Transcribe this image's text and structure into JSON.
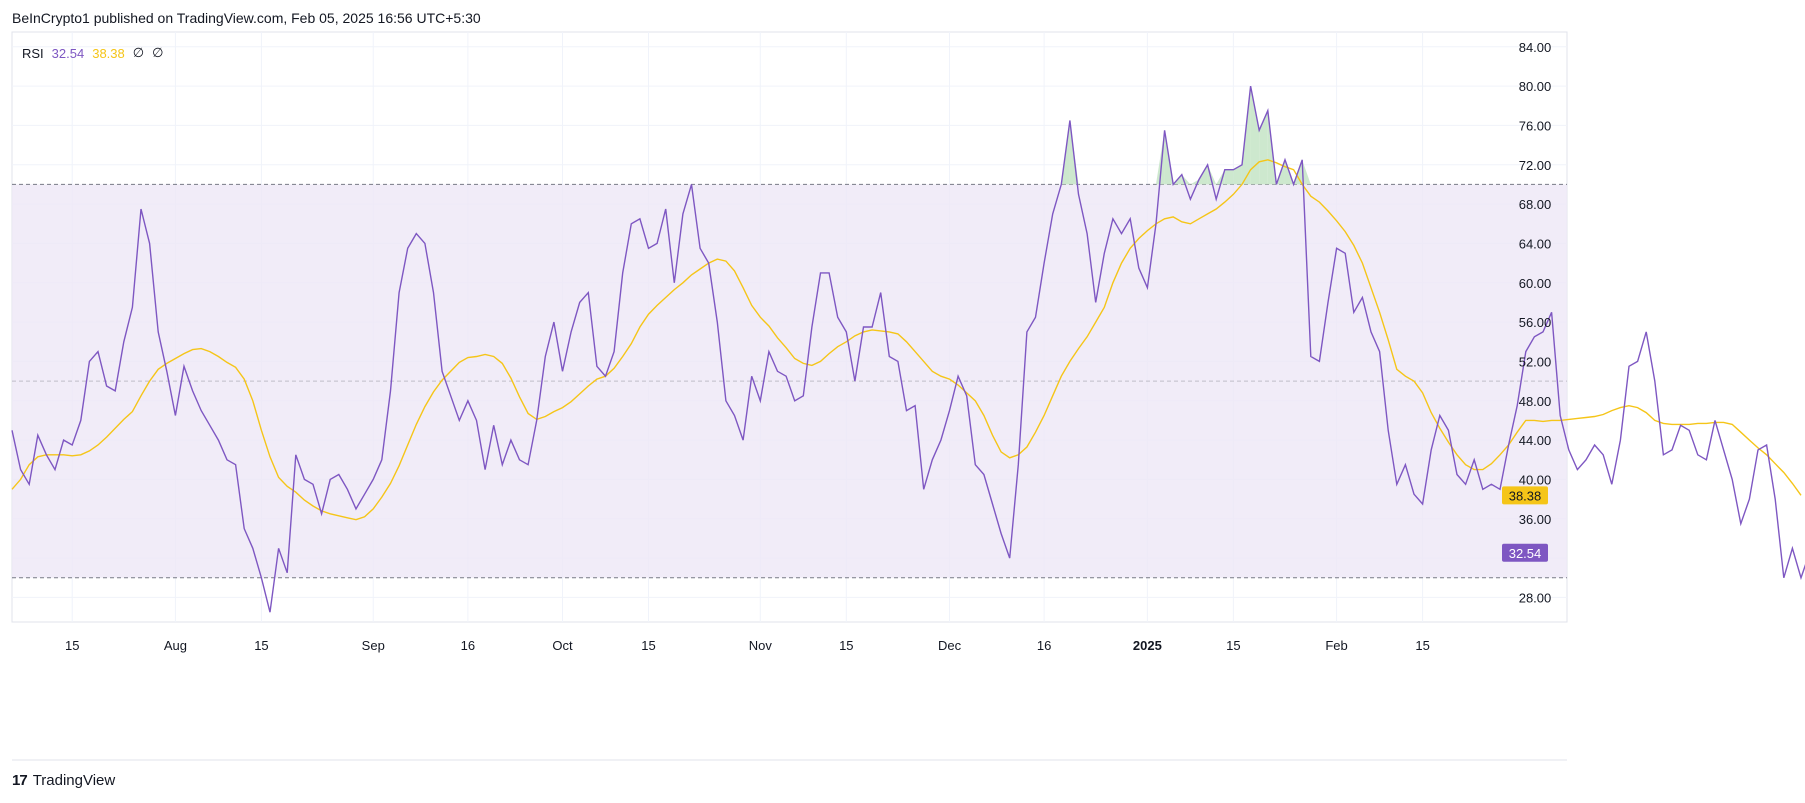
{
  "publisher": "BeInCrypto1 published on TradingView.com, Feb 05, 2025 16:56 UTC+5:30",
  "footer": {
    "brand": "TradingView",
    "logo_text": "17"
  },
  "legend": {
    "name": "RSI",
    "rsi_value": "32.54",
    "ma_value": "38.38",
    "na1": "∅",
    "na2": "∅"
  },
  "colors": {
    "rsi": "#7e57c2",
    "ma": "#f5c518",
    "band": "#ede7f6",
    "overbought_fill": "#c8e6c9",
    "grid": "#f0f3fa",
    "axis_text": "#131722"
  },
  "chart_data": {
    "type": "line",
    "title": "RSI",
    "ylim": [
      25.5,
      85.5
    ],
    "y_ticks": [
      "84.00",
      "80.00",
      "76.00",
      "72.00",
      "68.00",
      "64.00",
      "60.00",
      "56.00",
      "52.00",
      "48.00",
      "44.00",
      "40.00",
      "36.00",
      "28.00"
    ],
    "x_ticks": [
      "15",
      "Aug",
      "15",
      "Sep",
      "16",
      "Oct",
      "15",
      "Nov",
      "15",
      "Dec",
      "16",
      "2025",
      "15",
      "Feb",
      "15"
    ],
    "x_tick_positions": [
      7,
      19,
      29,
      42,
      53,
      64,
      74,
      87,
      97,
      109,
      120,
      132,
      142,
      154,
      164
    ],
    "x_range": [
      0,
      173
    ],
    "bands": {
      "upper": 70,
      "middle": 50,
      "lower": 30
    },
    "last_labels": {
      "rsi": "32.54",
      "ma": "38.38"
    },
    "series": [
      {
        "name": "RSI",
        "values": [
          45,
          41,
          39.5,
          44.5,
          42.5,
          41,
          44,
          43.5,
          46,
          52,
          53,
          49.5,
          49,
          54,
          57.5,
          67.5,
          64,
          55,
          51,
          46.5,
          51.5,
          49,
          47,
          45.5,
          44,
          42,
          41.5,
          35,
          33,
          30,
          26.5,
          33,
          30.5,
          42.5,
          40,
          39.5,
          36.5,
          40,
          40.5,
          39,
          37,
          38.5,
          40,
          42,
          49,
          59,
          63.5,
          65,
          64,
          59,
          51,
          48.5,
          46,
          48,
          46,
          41,
          45.5,
          41.5,
          44,
          42,
          41.5,
          46,
          52.5,
          56,
          51,
          55,
          58,
          59,
          51.5,
          50.5,
          53,
          61,
          66,
          66.5,
          63.5,
          64,
          67.5,
          60,
          67,
          70,
          63.5,
          62,
          56,
          48,
          46.5,
          44,
          50.5,
          48,
          53,
          51,
          50.5,
          48,
          48.5,
          55.5,
          61,
          61,
          56.5,
          55,
          50,
          55.5,
          55.5,
          59,
          52.5,
          52,
          47,
          47.5,
          39,
          42,
          44,
          47,
          50.5,
          48.5,
          41.5,
          40.5,
          37.5,
          34.5,
          32,
          41.5,
          55,
          56.5,
          62,
          67,
          70,
          76.5,
          69,
          65,
          58,
          63,
          66.5,
          65,
          66.5,
          61.5,
          59.5,
          66,
          75.5,
          70,
          71,
          68.5,
          70.5,
          72,
          68.5,
          71.5,
          71.5,
          72,
          80,
          75.5,
          77.5,
          70,
          72.5,
          70,
          72.5,
          52.5,
          52,
          58,
          63.5,
          63,
          57,
          58.5,
          55,
          53,
          45,
          39.5,
          41.5,
          38.5,
          37.5,
          43,
          46.5,
          45,
          40.5,
          39.5,
          42,
          39,
          39.5,
          39,
          43.5,
          47.5,
          53,
          54.5,
          55,
          57,
          46.5,
          43,
          41,
          42,
          43.5,
          42.5,
          39.5,
          44,
          51.5,
          52,
          55,
          50,
          42.5,
          43,
          45.5,
          45,
          42.5,
          42,
          46,
          43,
          40,
          35.5,
          38,
          43,
          43.5,
          38,
          30,
          33,
          30,
          32.54
        ]
      },
      {
        "name": "RSI-based MA",
        "values": [
          39,
          40,
          41.5,
          42.3,
          42.5,
          42.5,
          42.5,
          42.4,
          42.5,
          42.9,
          43.5,
          44.3,
          45.2,
          46.1,
          46.9,
          48.5,
          50,
          51.2,
          51.8,
          52.3,
          52.8,
          53.2,
          53.3,
          53,
          52.5,
          51.9,
          51.4,
          50.2,
          48,
          45,
          42.3,
          40.2,
          39.3,
          38.7,
          37.9,
          37.3,
          36.8,
          36.5,
          36.3,
          36.1,
          35.9,
          36.2,
          37,
          38.2,
          39.6,
          41.4,
          43.5,
          45.6,
          47.4,
          48.9,
          50.1,
          51,
          51.9,
          52.4,
          52.5,
          52.7,
          52.5,
          51.8,
          50.3,
          48.4,
          46.7,
          46.1,
          46.4,
          46.9,
          47.3,
          47.9,
          48.7,
          49.5,
          50.2,
          50.5,
          51.3,
          52.5,
          53.8,
          55.5,
          56.8,
          57.7,
          58.5,
          59.3,
          60,
          60.8,
          61.4,
          62,
          62.4,
          62.2,
          61.2,
          59.5,
          57.7,
          56.5,
          55.6,
          54.4,
          53.4,
          52.3,
          51.8,
          51.6,
          52,
          52.8,
          53.5,
          54,
          54.6,
          55,
          55.2,
          55.1,
          55,
          54.8,
          54,
          53,
          52,
          51,
          50.5,
          50.2,
          49.6,
          48.8,
          48,
          46.5,
          44.5,
          42.8,
          42.2,
          42.5,
          43.3,
          44.8,
          46.5,
          48.5,
          50.5,
          52,
          53.3,
          54.5,
          56,
          57.5,
          60,
          62,
          63.5,
          64.5,
          65.3,
          66,
          66.5,
          66.7,
          66.2,
          66,
          66.5,
          67,
          67.5,
          68.2,
          69,
          70,
          71.5,
          72.3,
          72.5,
          72.2,
          71.8,
          71.5,
          70,
          68.8,
          68.2,
          67.3,
          66.3,
          65.2,
          63.8,
          62,
          59.5,
          57,
          54.2,
          51.2,
          50.5,
          50,
          48.8,
          46.8,
          45.2,
          43.8,
          42.5,
          41.5,
          41,
          41,
          41.6,
          42.5,
          43.5,
          44.8,
          46,
          46,
          45.9,
          46,
          46,
          46.1,
          46.2,
          46.3,
          46.4,
          46.6,
          47,
          47.3,
          47.5,
          47.3,
          46.8,
          46,
          45.7,
          45.6,
          45.6,
          45.6,
          45.7,
          45.7,
          45.8,
          45.8,
          45.6,
          44.8,
          44,
          43.2,
          42.5,
          41.6,
          40.7,
          39.6,
          38.38
        ]
      }
    ]
  }
}
